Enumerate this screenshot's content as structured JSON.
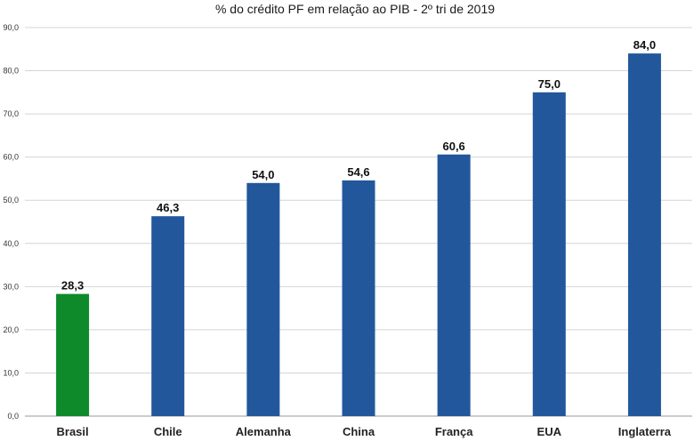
{
  "chart_data": {
    "type": "bar",
    "title": "% do crédito PF em relação ao PIB - 2º tri de 2019",
    "categories": [
      "Brasil",
      "Chile",
      "Alemanha",
      "China",
      "França",
      "EUA",
      "Inglaterra"
    ],
    "values": [
      28.3,
      46.3,
      54.0,
      54.6,
      60.6,
      75.0,
      84.0
    ],
    "value_labels": [
      "28,3",
      "46,3",
      "54,0",
      "54,6",
      "60,6",
      "75,0",
      "84,0"
    ],
    "ylim": [
      0,
      90
    ],
    "yticks": [
      "0,0",
      "10,0",
      "20,0",
      "30,0",
      "40,0",
      "50,0",
      "60,0",
      "70,0",
      "80,0",
      "90,0"
    ],
    "xlabel": "",
    "ylabel": "",
    "grid": true,
    "colors": {
      "default_bar": "#22579c",
      "highlight_bar": "#0e8a2a",
      "highlight_category": "Brasil",
      "gridline": "#d4d4d4"
    }
  }
}
